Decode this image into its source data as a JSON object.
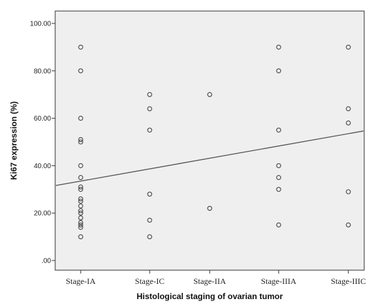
{
  "chart_data": {
    "type": "scatter",
    "title": "",
    "xlabel": "Histological staging of ovarian tumor",
    "ylabel": "Ki67 expression (%)",
    "categories": [
      "Stage-IA",
      "Stage-IC",
      "Stage-IIA",
      "Stage-IIIA",
      "Stage-IIIC"
    ],
    "ylim": [
      0,
      100
    ],
    "yticks": [
      0,
      20,
      40,
      60,
      80,
      100
    ],
    "ytick_labels": [
      ".00",
      "20.00",
      "40.00",
      "60.00",
      "80.00",
      "100.00"
    ],
    "grid": false,
    "legend": "none",
    "points": [
      {
        "x": "Stage-IA",
        "y": 90
      },
      {
        "x": "Stage-IA",
        "y": 80
      },
      {
        "x": "Stage-IA",
        "y": 60
      },
      {
        "x": "Stage-IA",
        "y": 51
      },
      {
        "x": "Stage-IA",
        "y": 50
      },
      {
        "x": "Stage-IA",
        "y": 40
      },
      {
        "x": "Stage-IA",
        "y": 35
      },
      {
        "x": "Stage-IA",
        "y": 31
      },
      {
        "x": "Stage-IA",
        "y": 30
      },
      {
        "x": "Stage-IA",
        "y": 26
      },
      {
        "x": "Stage-IA",
        "y": 25
      },
      {
        "x": "Stage-IA",
        "y": 23
      },
      {
        "x": "Stage-IA",
        "y": 21
      },
      {
        "x": "Stage-IA",
        "y": 20
      },
      {
        "x": "Stage-IA",
        "y": 18
      },
      {
        "x": "Stage-IA",
        "y": 16
      },
      {
        "x": "Stage-IA",
        "y": 15
      },
      {
        "x": "Stage-IA",
        "y": 14
      },
      {
        "x": "Stage-IA",
        "y": 10
      },
      {
        "x": "Stage-IC",
        "y": 70
      },
      {
        "x": "Stage-IC",
        "y": 64
      },
      {
        "x": "Stage-IC",
        "y": 55
      },
      {
        "x": "Stage-IC",
        "y": 28
      },
      {
        "x": "Stage-IC",
        "y": 17
      },
      {
        "x": "Stage-IC",
        "y": 10
      },
      {
        "x": "Stage-IIA",
        "y": 70
      },
      {
        "x": "Stage-IIA",
        "y": 22
      },
      {
        "x": "Stage-IIIA",
        "y": 90
      },
      {
        "x": "Stage-IIIA",
        "y": 80
      },
      {
        "x": "Stage-IIIA",
        "y": 55
      },
      {
        "x": "Stage-IIIA",
        "y": 40
      },
      {
        "x": "Stage-IIIA",
        "y": 35
      },
      {
        "x": "Stage-IIIA",
        "y": 30
      },
      {
        "x": "Stage-IIIA",
        "y": 15
      },
      {
        "x": "Stage-IIIC",
        "y": 90
      },
      {
        "x": "Stage-IIIC",
        "y": 64
      },
      {
        "x": "Stage-IIIC",
        "y": 58
      },
      {
        "x": "Stage-IIIC",
        "y": 29
      },
      {
        "x": "Stage-IIIC",
        "y": 15
      }
    ],
    "fit_line": {
      "type": "linear",
      "start": {
        "x": "Stage-IA",
        "y": 33.5
      },
      "end": {
        "x": "Stage-IIIC",
        "y": 53.5
      }
    },
    "colors": {
      "plot_background": "#efefef",
      "marker_stroke": "#444444",
      "line": "#555555",
      "axis": "#333333"
    }
  }
}
